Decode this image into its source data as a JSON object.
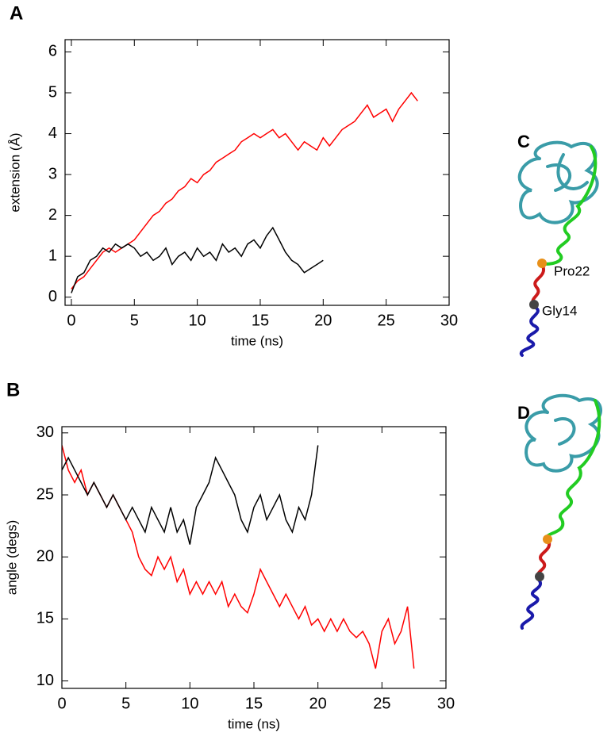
{
  "chart_data": [
    {
      "type": "line",
      "panel": "A",
      "xlabel": "time (ns)",
      "ylabel": "extension (Å)",
      "xlim": [
        -0.5,
        30
      ],
      "ylim": [
        -0.2,
        6.3
      ],
      "xticks": [
        0,
        5,
        10,
        15,
        20,
        25,
        30
      ],
      "yticks": [
        0,
        1,
        2,
        3,
        4,
        5,
        6
      ],
      "series": [
        {
          "color": "#ff0000",
          "x": [
            0,
            0.5,
            1,
            1.5,
            2,
            2.5,
            3,
            3.5,
            4,
            4.5,
            5,
            5.5,
            6,
            6.5,
            7,
            7.5,
            8,
            8.5,
            9,
            9.5,
            10,
            10.5,
            11,
            11.5,
            12,
            12.5,
            13,
            13.5,
            14,
            14.5,
            15,
            15.5,
            16,
            16.5,
            17,
            17.5,
            18,
            18.5,
            19,
            19.5,
            20,
            20.5,
            21,
            21.5,
            22,
            22.5,
            23,
            23.5,
            24,
            24.5,
            25,
            25.5,
            26,
            26.5,
            27,
            27.5
          ],
          "values": [
            0.2,
            0.4,
            0.5,
            0.7,
            0.9,
            1.1,
            1.2,
            1.1,
            1.2,
            1.3,
            1.4,
            1.6,
            1.8,
            2.0,
            2.1,
            2.3,
            2.4,
            2.6,
            2.7,
            2.9,
            2.8,
            3.0,
            3.1,
            3.3,
            3.4,
            3.5,
            3.6,
            3.8,
            3.9,
            4.0,
            3.9,
            4.0,
            4.1,
            3.9,
            4.0,
            3.8,
            3.6,
            3.8,
            3.7,
            3.6,
            3.9,
            3.7,
            3.9,
            4.1,
            4.2,
            4.3,
            4.5,
            4.7,
            4.4,
            4.5,
            4.6,
            4.3,
            4.6,
            4.8,
            5.0,
            4.8
          ]
        },
        {
          "color": "#000000",
          "x": [
            0,
            0.5,
            1,
            1.5,
            2,
            2.5,
            3,
            3.5,
            4,
            4.5,
            5,
            5.5,
            6,
            6.5,
            7,
            7.5,
            8,
            8.5,
            9,
            9.5,
            10,
            10.5,
            11,
            11.5,
            12,
            12.5,
            13,
            13.5,
            14,
            14.5,
            15,
            15.5,
            16,
            16.5,
            17,
            17.5,
            18,
            18.5,
            19,
            19.5,
            20
          ],
          "values": [
            0.1,
            0.5,
            0.6,
            0.9,
            1.0,
            1.2,
            1.1,
            1.3,
            1.2,
            1.3,
            1.2,
            1.0,
            1.1,
            0.9,
            1.0,
            1.2,
            0.8,
            1.0,
            1.1,
            0.9,
            1.2,
            1.0,
            1.1,
            0.9,
            1.3,
            1.1,
            1.2,
            1.0,
            1.3,
            1.4,
            1.2,
            1.5,
            1.7,
            1.4,
            1.1,
            0.9,
            0.8,
            0.6,
            0.7,
            0.8,
            0.9
          ]
        }
      ]
    },
    {
      "type": "line",
      "panel": "B",
      "xlabel": "time (ns)",
      "ylabel": "angle (degs)",
      "xlim": [
        0,
        30
      ],
      "ylim": [
        9.4,
        30.5
      ],
      "xticks": [
        0,
        5,
        10,
        15,
        20,
        25,
        30
      ],
      "yticks": [
        10,
        15,
        20,
        25,
        30
      ],
      "series": [
        {
          "color": "#ff0000",
          "x": [
            0,
            0.5,
            1,
            1.5,
            2,
            2.5,
            3,
            3.5,
            4,
            4.5,
            5,
            5.5,
            6,
            6.5,
            7,
            7.5,
            8,
            8.5,
            9,
            9.5,
            10,
            10.5,
            11,
            11.5,
            12,
            12.5,
            13,
            13.5,
            14,
            14.5,
            15,
            15.5,
            16,
            16.5,
            17,
            17.5,
            18,
            18.5,
            19,
            19.5,
            20,
            20.5,
            21,
            21.5,
            22,
            22.5,
            23,
            23.5,
            24,
            24.5,
            25,
            25.5,
            26,
            26.5,
            27,
            27.5
          ],
          "values": [
            29,
            27,
            26,
            27,
            25,
            26,
            25,
            24,
            25,
            24,
            23,
            22,
            20,
            19,
            18.5,
            20,
            19,
            20,
            18,
            19,
            17,
            18,
            17,
            18,
            17,
            18,
            16,
            17,
            16,
            15.5,
            17,
            19,
            18,
            17,
            16,
            17,
            16,
            15,
            16,
            14.5,
            15,
            14,
            15,
            14,
            15,
            14,
            13.5,
            14,
            13,
            11,
            14,
            15,
            13,
            14,
            16,
            11
          ]
        },
        {
          "color": "#000000",
          "x": [
            0,
            0.5,
            1,
            1.5,
            2,
            2.5,
            3,
            3.5,
            4,
            4.5,
            5,
            5.5,
            6,
            6.5,
            7,
            7.5,
            8,
            8.5,
            9,
            9.5,
            10,
            10.5,
            11,
            11.5,
            12,
            12.5,
            13,
            13.5,
            14,
            14.5,
            15,
            15.5,
            16,
            16.5,
            17,
            17.5,
            18,
            18.5,
            19,
            19.5,
            20
          ],
          "values": [
            27,
            28,
            27,
            26,
            25,
            26,
            25,
            24,
            25,
            24,
            23,
            24,
            23,
            22,
            24,
            23,
            22,
            24,
            22,
            23,
            21,
            24,
            25,
            26,
            28,
            27,
            26,
            25,
            23,
            22,
            24,
            25,
            23,
            24,
            25,
            23,
            22,
            24,
            23,
            25,
            29
          ]
        }
      ]
    }
  ],
  "structures": [
    {
      "panel": "C",
      "labels": [
        "Pro22",
        "Gly14"
      ]
    },
    {
      "panel": "D"
    }
  ]
}
